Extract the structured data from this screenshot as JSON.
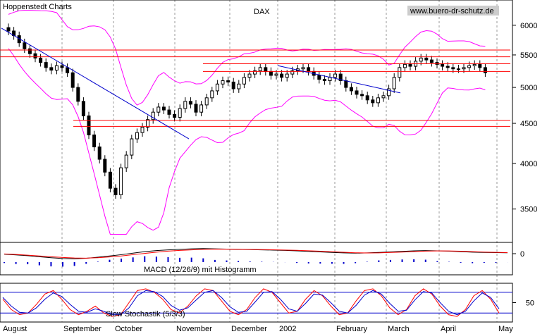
{
  "header": {
    "source": "Hoppenstedt Charts",
    "title": "DAX",
    "website": "www.buero-dr-schutz.de"
  },
  "colors": {
    "background": "#ffffff",
    "candle": "#000000",
    "bollinger": "#ff00ff",
    "support_resistance": "#ff0000",
    "trendline": "#0000cc",
    "macd_line": "#000000",
    "macd_signal": "#ff0000",
    "macd_histogram": "#0000cc",
    "stoch_k": "#ff0000",
    "stoch_d": "#0000cc",
    "grid": "#999999",
    "website_bg": "#cccccc"
  },
  "chart_data": [
    {
      "type": "candlestick",
      "title": "DAX",
      "x_labels": [
        "August",
        "September",
        "October",
        "November",
        "December",
        "2002",
        "February",
        "March",
        "April",
        "May"
      ],
      "y_ticks": [
        3500,
        4000,
        4500,
        5000,
        5500,
        6000
      ],
      "ylim": [
        3200,
        6200
      ],
      "log_scale": true,
      "grid": "vertical-dashed",
      "close": [
        5900,
        5820,
        5700,
        5600,
        5520,
        5450,
        5380,
        5300,
        5260,
        5330,
        5300,
        5220,
        5000,
        4800,
        4600,
        4350,
        4200,
        4050,
        3900,
        3720,
        3650,
        3950,
        4100,
        4300,
        4380,
        4450,
        4550,
        4650,
        4720,
        4680,
        4620,
        4580,
        4700,
        4800,
        4760,
        4650,
        4750,
        4850,
        4950,
        5050,
        5100,
        5080,
        4980,
        5050,
        5150,
        5200,
        5250,
        5300,
        5240,
        5180,
        5200,
        5150,
        5200,
        5250,
        5280,
        5300,
        5240,
        5180,
        5120,
        5100,
        5150,
        5200,
        5100,
        5000,
        4950,
        4900,
        4880,
        4820,
        4780,
        4850,
        4880,
        4980,
        5150,
        5300,
        5350,
        5320,
        5400,
        5450,
        5420,
        5380,
        5350,
        5320,
        5300,
        5280,
        5280,
        5300,
        5330,
        5350,
        5300,
        5220
      ],
      "resistance_support_lines": [
        5580,
        5470,
        5360,
        5240,
        4540,
        4460
      ],
      "trendlines": [
        {
          "from": [
            "August",
            5950
          ],
          "to": [
            "November",
            4300
          ]
        },
        {
          "from": [
            "2002",
            5330
          ],
          "to": [
            "March",
            4920
          ]
        }
      ],
      "indicators": [
        "Bollinger Bands"
      ]
    },
    {
      "type": "bar+line",
      "title": "MACD (12/26/9) mit Histogramm",
      "y_ticks": [
        0
      ],
      "series": [
        {
          "name": "MACD",
          "values": [
            -10,
            -25,
            -40,
            -60,
            -80,
            -95,
            -100,
            -90,
            -70,
            -45,
            -20,
            10,
            40,
            60,
            75,
            85,
            95,
            100,
            95,
            90,
            85,
            80,
            75,
            70,
            65,
            55,
            45,
            35,
            25,
            15,
            10,
            15,
            25,
            35,
            45,
            55,
            60,
            55,
            50,
            40,
            30,
            25,
            20,
            18
          ]
        },
        {
          "name": "Signal",
          "values": [
            -5,
            -15,
            -30,
            -45,
            -60,
            -75,
            -85,
            -88,
            -80,
            -65,
            -45,
            -20,
            5,
            30,
            50,
            65,
            75,
            85,
            90,
            88,
            86,
            84,
            80,
            76,
            72,
            66,
            58,
            48,
            38,
            28,
            18,
            14,
            16,
            24,
            32,
            42,
            50,
            54,
            53,
            48,
            40,
            32,
            26,
            20
          ]
        }
      ]
    },
    {
      "type": "line",
      "title": "Slow Stochastik (5/3/3)",
      "y_ticks": [
        50
      ],
      "ylim": [
        0,
        100
      ],
      "reference_lines": [
        20,
        80
      ],
      "series": [
        {
          "name": "%K",
          "values": [
            60,
            30,
            15,
            20,
            45,
            75,
            85,
            60,
            30,
            15,
            25,
            40,
            20,
            10,
            15,
            50,
            85,
            90,
            80,
            60,
            30,
            20,
            40,
            70,
            90,
            85,
            55,
            25,
            15,
            30,
            65,
            90,
            80,
            50,
            20,
            25,
            60,
            85,
            70,
            40,
            15,
            20,
            55,
            85,
            90,
            70,
            35,
            15,
            30,
            70,
            90,
            75,
            40,
            15,
            10,
            30,
            70,
            85,
            60,
            20
          ]
        },
        {
          "name": "%D",
          "values": [
            65,
            40,
            22,
            20,
            35,
            60,
            78,
            68,
            45,
            25,
            22,
            32,
            25,
            15,
            15,
            35,
            70,
            85,
            82,
            68,
            42,
            28,
            35,
            58,
            80,
            85,
            65,
            38,
            22,
            25,
            52,
            80,
            82,
            60,
            32,
            25,
            48,
            75,
            72,
            50,
            25,
            20,
            42,
            72,
            85,
            75,
            48,
            25,
            28,
            58,
            82,
            78,
            50,
            25,
            15,
            25,
            55,
            78,
            65,
            32
          ]
        }
      ]
    }
  ]
}
